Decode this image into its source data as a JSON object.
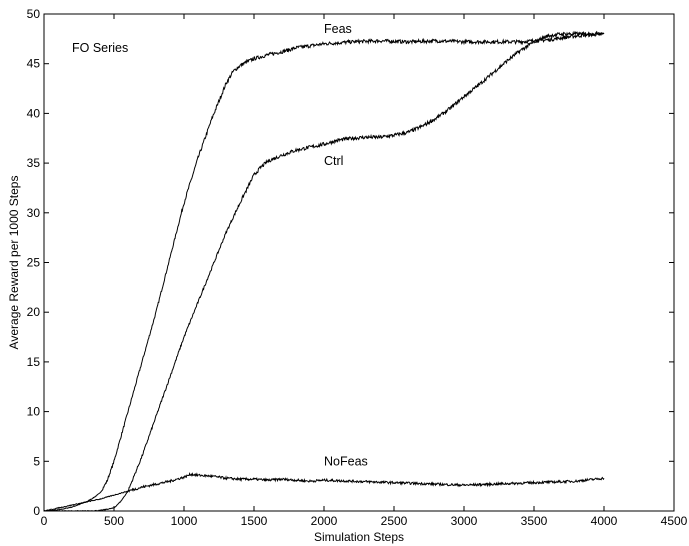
{
  "chart_data": {
    "type": "line",
    "title": "",
    "xlabel": "Simulation Steps",
    "ylabel": "Average Reward per 1000 Steps",
    "xlim": [
      0,
      4500
    ],
    "ylim": [
      0,
      50
    ],
    "xticks": [
      "0",
      "500",
      "1000",
      "1500",
      "2000",
      "2500",
      "3000",
      "3500",
      "4000",
      "4500"
    ],
    "yticks": [
      "0",
      "5",
      "10",
      "15",
      "20",
      "25",
      "30",
      "35",
      "40",
      "45",
      "50"
    ],
    "grid": false,
    "legend": "none",
    "annotations": [
      {
        "text": "FO Series",
        "x": 200,
        "y": 46.2
      },
      {
        "text": "Feas",
        "x": 2000,
        "y": 48.1
      },
      {
        "text": "Ctrl",
        "x": 2000,
        "y": 34.8
      },
      {
        "text": "NoFeas",
        "x": 2000,
        "y": 4.6
      }
    ],
    "series": [
      {
        "name": "Feas",
        "x": [
          0,
          100,
          200,
          300,
          350,
          400,
          450,
          500,
          600,
          700,
          800,
          900,
          1000,
          1100,
          1200,
          1300,
          1350,
          1400,
          1450,
          1500,
          1600,
          1700,
          1800,
          1900,
          2000,
          2200,
          2400,
          2600,
          2800,
          3000,
          3200,
          3400,
          3600,
          3800,
          4000
        ],
        "y": [
          0,
          0.1,
          0.4,
          0.9,
          1.3,
          1.8,
          3.0,
          5.0,
          10.0,
          15.0,
          20.0,
          25.5,
          31.0,
          35.5,
          39.5,
          43.0,
          44.2,
          44.8,
          45.2,
          45.5,
          45.9,
          46.2,
          46.6,
          46.8,
          47.0,
          47.2,
          47.3,
          47.2,
          47.3,
          47.2,
          47.2,
          47.2,
          47.4,
          47.8,
          48.0
        ]
      },
      {
        "name": "Ctrl",
        "x": [
          0,
          100,
          200,
          300,
          400,
          500,
          550,
          600,
          700,
          800,
          900,
          1000,
          1100,
          1200,
          1300,
          1400,
          1500,
          1550,
          1600,
          1700,
          1800,
          1900,
          2000,
          2100,
          2200,
          2300,
          2400,
          2500,
          2600,
          2700,
          2800,
          2900,
          3000,
          3100,
          3200,
          3300,
          3400,
          3500,
          3600,
          3700,
          3800,
          3900,
          4000
        ],
        "y": [
          0,
          0,
          0,
          0,
          0.05,
          0.3,
          1.0,
          2.0,
          5.5,
          9.5,
          13.5,
          17.5,
          21.0,
          24.5,
          28.0,
          31.0,
          33.8,
          34.6,
          35.2,
          35.8,
          36.3,
          36.6,
          36.9,
          37.3,
          37.5,
          37.6,
          37.6,
          37.8,
          38.1,
          38.7,
          39.5,
          40.5,
          41.7,
          42.8,
          44.0,
          45.2,
          46.3,
          47.2,
          47.8,
          48.0,
          48.0,
          48.0,
          48.1
        ]
      },
      {
        "name": "NoFeas",
        "x": [
          0,
          100,
          200,
          300,
          400,
          500,
          600,
          700,
          800,
          900,
          1000,
          1050,
          1100,
          1200,
          1300,
          1400,
          1500,
          1600,
          1700,
          1800,
          1900,
          2000,
          2200,
          2400,
          2600,
          2800,
          3000,
          3200,
          3400,
          3600,
          3800,
          4000
        ],
        "y": [
          0,
          0.3,
          0.6,
          0.9,
          1.2,
          1.6,
          2.0,
          2.4,
          2.7,
          3.0,
          3.4,
          3.7,
          3.6,
          3.5,
          3.3,
          3.2,
          3.2,
          3.1,
          3.2,
          3.1,
          3.0,
          3.1,
          3.0,
          2.9,
          2.8,
          2.7,
          2.6,
          2.7,
          2.8,
          2.9,
          3.0,
          3.3
        ]
      }
    ]
  }
}
